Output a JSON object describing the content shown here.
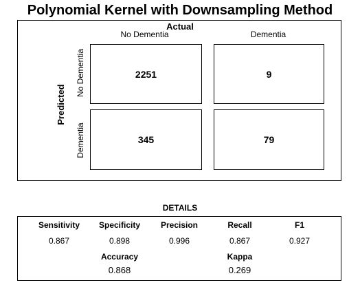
{
  "title": "Polynomial Kernel with Downsampling Method",
  "chart_data": {
    "type": "table",
    "actual_label": "Actual",
    "predicted_label": "Predicted",
    "columns": [
      "No Dementia",
      "Dementia"
    ],
    "rows": [
      "No Dementia",
      "Dementia"
    ],
    "matrix": [
      [
        2251,
        9
      ],
      [
        345,
        79
      ]
    ]
  },
  "details": {
    "title": "DETAILS",
    "metrics": [
      {
        "name": "Sensitivity",
        "value": "0.867"
      },
      {
        "name": "Specificity",
        "value": "0.898"
      },
      {
        "name": "Precision",
        "value": "0.996"
      },
      {
        "name": "Recall",
        "value": "0.867"
      },
      {
        "name": "F1",
        "value": "0.927"
      }
    ],
    "summary": [
      {
        "name": "Accuracy",
        "value": "0.868"
      },
      {
        "name": "Kappa",
        "value": "0.269"
      }
    ]
  }
}
